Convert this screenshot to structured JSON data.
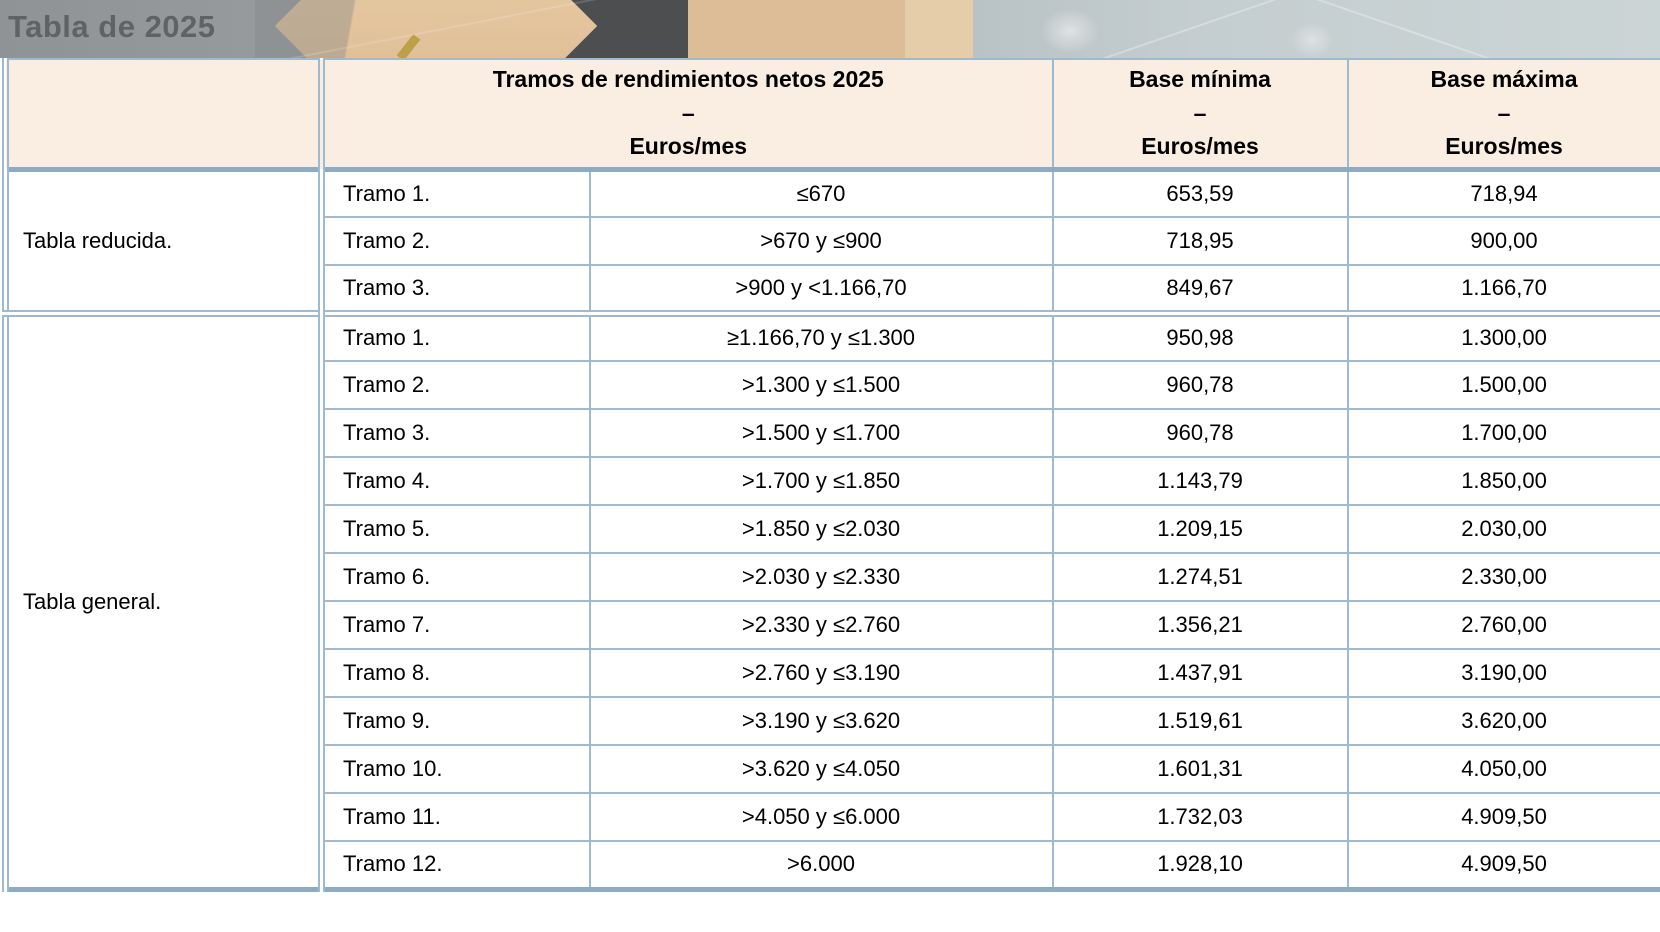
{
  "page": {
    "title": "Tabla de 2025"
  },
  "colors": {
    "border": "#9fbad0",
    "border_strong": "#8fabc3",
    "header_bg": "#faeee3",
    "title_color": "#606365",
    "block_dark": "#4c4e50",
    "wood_light": "#e2c29a",
    "wood_mid": "#dcbd97"
  },
  "table": {
    "headers": {
      "tramos": {
        "title": "Tramos de rendimientos netos 2025",
        "separator": "–",
        "unit": "Euros/mes"
      },
      "base_minima": {
        "title": "Base mínima",
        "separator": "–",
        "unit": "Euros/mes"
      },
      "base_maxima": {
        "title": "Base máxima",
        "separator": "–",
        "unit": "Euros/mes"
      }
    },
    "sections": [
      {
        "label": "Tabla reducida.",
        "rows": [
          {
            "tramo": "Tramo 1.",
            "range": "≤670",
            "base_min": "653,59",
            "base_max": "718,94"
          },
          {
            "tramo": "Tramo 2.",
            "range": ">670 y ≤900",
            "base_min": "718,95",
            "base_max": "900,00"
          },
          {
            "tramo": "Tramo 3.",
            "range": ">900 y <1.166,70",
            "base_min": "849,67",
            "base_max": "1.166,70"
          }
        ]
      },
      {
        "label": "Tabla general.",
        "rows": [
          {
            "tramo": "Tramo 1.",
            "range": "≥1.166,70 y ≤1.300",
            "base_min": "950,98",
            "base_max": "1.300,00"
          },
          {
            "tramo": "Tramo 2.",
            "range": ">1.300 y ≤1.500",
            "base_min": "960,78",
            "base_max": "1.500,00"
          },
          {
            "tramo": "Tramo 3.",
            "range": ">1.500 y ≤1.700",
            "base_min": "960,78",
            "base_max": "1.700,00"
          },
          {
            "tramo": "Tramo 4.",
            "range": ">1.700 y ≤1.850",
            "base_min": "1.143,79",
            "base_max": "1.850,00"
          },
          {
            "tramo": "Tramo 5.",
            "range": ">1.850 y ≤2.030",
            "base_min": "1.209,15",
            "base_max": "2.030,00"
          },
          {
            "tramo": "Tramo 6.",
            "range": ">2.030 y ≤2.330",
            "base_min": "1.274,51",
            "base_max": "2.330,00"
          },
          {
            "tramo": "Tramo 7.",
            "range": ">2.330 y ≤2.760",
            "base_min": "1.356,21",
            "base_max": "2.760,00"
          },
          {
            "tramo": "Tramo 8.",
            "range": ">2.760 y ≤3.190",
            "base_min": "1.437,91",
            "base_max": "3.190,00"
          },
          {
            "tramo": "Tramo 9.",
            "range": ">3.190 y ≤3.620",
            "base_min": "1.519,61",
            "base_max": "3.620,00"
          },
          {
            "tramo": "Tramo 10.",
            "range": ">3.620 y ≤4.050",
            "base_min": "1.601,31",
            "base_max": "4.050,00"
          },
          {
            "tramo": "Tramo 11.",
            "range": ">4.050 y ≤6.000",
            "base_min": "1.732,03",
            "base_max": "4.909,50"
          },
          {
            "tramo": "Tramo 12.",
            "range": ">6.000",
            "base_min": "1.928,10",
            "base_max": "4.909,50"
          }
        ]
      }
    ]
  }
}
